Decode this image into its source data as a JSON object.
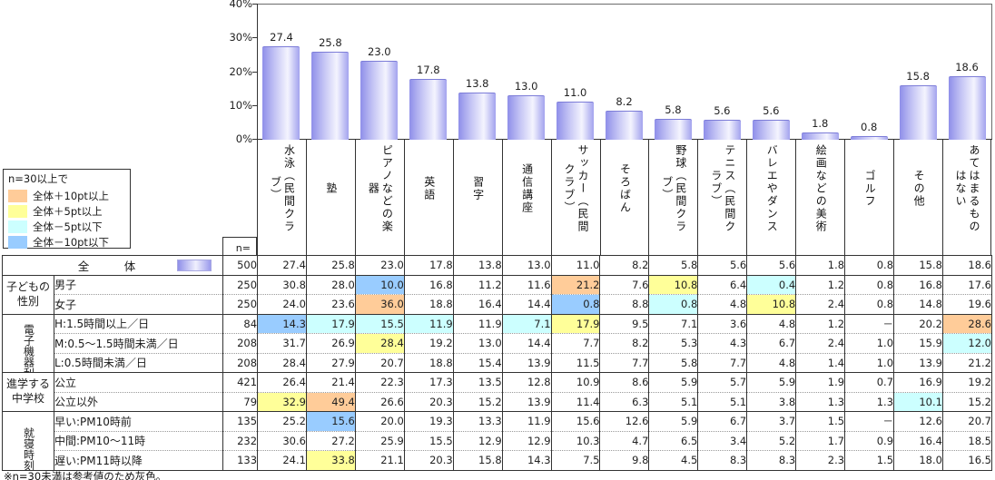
{
  "chart_data": {
    "type": "bar",
    "title": "",
    "xlabel": "",
    "ylabel": "",
    "ylim": [
      0,
      40
    ],
    "grid": false,
    "y_ticks": [
      "0%",
      "10%",
      "20%",
      "30%",
      "40%"
    ],
    "categories": [
      "水泳（民間クラブ）",
      "塾",
      "ピアノなどの楽器",
      "英語",
      "習字",
      "通信講座",
      "サッカー（民間クラブ）",
      "そろばん",
      "野球（民間クラブ）",
      "テニス（民間クラブ）",
      "バレエやダンス",
      "絵画などの美術",
      "ゴルフ",
      "その他",
      "あてはまるものはない"
    ],
    "values": [
      27.4,
      25.8,
      23.0,
      17.8,
      13.8,
      13.0,
      11.0,
      8.2,
      5.8,
      5.6,
      5.6,
      1.8,
      0.8,
      15.8,
      18.6
    ]
  },
  "legend": {
    "title": "n=30以上で",
    "items": [
      {
        "label": "全体＋10pt以上",
        "key": "orange"
      },
      {
        "label": "全体＋5pt以上",
        "key": "yellow"
      },
      {
        "label": "全体－5pt以下",
        "key": "cyan"
      },
      {
        "label": "全体－10pt以下",
        "key": "blue"
      }
    ]
  },
  "highlight_colors": {
    "orange": "#FFCC99",
    "yellow": "#FFFF99",
    "cyan": "#CCFFFF",
    "blue": "#99CCFF"
  },
  "table": {
    "n_header": "n=",
    "total_row": {
      "label": "全　体",
      "n": "500",
      "values": [
        "27.4",
        "25.8",
        "23.0",
        "17.8",
        "13.8",
        "13.0",
        "11.0",
        "8.2",
        "5.8",
        "5.6",
        "5.6",
        "1.8",
        "0.8",
        "15.8",
        "18.6"
      ]
    },
    "groups": [
      {
        "label": "子どもの\n性別",
        "orientation": "h",
        "rows": [
          {
            "label": "男子",
            "n": "250",
            "values": [
              "30.8",
              "28.0",
              "10.0",
              "16.8",
              "11.2",
              "11.6",
              "21.2",
              "7.6",
              "10.8",
              "6.4",
              "0.4",
              "1.2",
              "0.8",
              "16.8",
              "17.6"
            ],
            "highlights": {
              "2": "blue",
              "6": "orange",
              "8": "yellow",
              "10": "cyan"
            }
          },
          {
            "label": "女子",
            "n": "250",
            "values": [
              "24.0",
              "23.6",
              "36.0",
              "18.8",
              "16.4",
              "14.4",
              "0.8",
              "8.8",
              "0.8",
              "4.8",
              "10.8",
              "2.4",
              "0.8",
              "14.8",
              "19.6"
            ],
            "highlights": {
              "2": "orange",
              "6": "blue",
              "8": "cyan",
              "10": "yellow"
            }
          }
        ]
      },
      {
        "label": "電子機器利用時間",
        "orientation": "v3",
        "rows": [
          {
            "label": "H:1.5時間以上／日",
            "n": "84",
            "values": [
              "14.3",
              "17.9",
              "15.5",
              "11.9",
              "11.9",
              "7.1",
              "17.9",
              "9.5",
              "7.1",
              "3.6",
              "4.8",
              "1.2",
              "－",
              "20.2",
              "28.6"
            ],
            "highlights": {
              "0": "blue",
              "1": "cyan",
              "2": "cyan",
              "3": "cyan",
              "5": "cyan",
              "6": "yellow",
              "14": "orange"
            }
          },
          {
            "label": "M:0.5～1.5時間未満／日",
            "n": "208",
            "values": [
              "31.7",
              "26.9",
              "28.4",
              "19.2",
              "13.0",
              "14.4",
              "7.7",
              "8.2",
              "5.3",
              "4.3",
              "6.7",
              "2.4",
              "1.0",
              "15.9",
              "12.0"
            ],
            "highlights": {
              "2": "yellow",
              "14": "cyan"
            }
          },
          {
            "label": "L:0.5時間未満／日",
            "n": "208",
            "values": [
              "28.4",
              "27.9",
              "20.7",
              "18.8",
              "15.4",
              "13.9",
              "11.5",
              "7.7",
              "5.8",
              "7.7",
              "4.8",
              "1.4",
              "1.0",
              "13.9",
              "21.2"
            ],
            "highlights": {}
          }
        ]
      },
      {
        "label": "進学する\n中学校",
        "orientation": "h",
        "rows": [
          {
            "label": "公立",
            "n": "421",
            "values": [
              "26.4",
              "21.4",
              "22.3",
              "17.3",
              "13.5",
              "12.8",
              "10.9",
              "8.6",
              "5.9",
              "5.7",
              "5.9",
              "1.9",
              "0.7",
              "16.9",
              "19.2"
            ],
            "highlights": {}
          },
          {
            "label": "公立以外",
            "n": "79",
            "values": [
              "32.9",
              "49.4",
              "26.6",
              "20.3",
              "15.2",
              "13.9",
              "11.4",
              "6.3",
              "5.1",
              "5.1",
              "3.8",
              "1.3",
              "1.3",
              "10.1",
              "15.2"
            ],
            "highlights": {
              "0": "yellow",
              "1": "orange",
              "13": "cyan"
            }
          }
        ]
      },
      {
        "label": "就寝時刻",
        "orientation": "v2",
        "rows": [
          {
            "label": "早い:PM10時前",
            "n": "135",
            "values": [
              "25.2",
              "15.6",
              "20.0",
              "19.3",
              "13.3",
              "11.9",
              "15.6",
              "12.6",
              "5.9",
              "6.7",
              "3.7",
              "1.5",
              "－",
              "12.6",
              "20.7"
            ],
            "highlights": {
              "1": "blue"
            }
          },
          {
            "label": "中間:PM10～11時",
            "n": "232",
            "values": [
              "30.6",
              "27.2",
              "25.9",
              "15.5",
              "12.9",
              "12.9",
              "10.3",
              "4.7",
              "6.5",
              "3.4",
              "5.2",
              "1.7",
              "0.9",
              "16.4",
              "18.5"
            ],
            "highlights": {}
          },
          {
            "label": "遅い:PM11時以降",
            "n": "133",
            "values": [
              "24.1",
              "33.8",
              "21.1",
              "20.3",
              "15.8",
              "14.3",
              "7.5",
              "9.8",
              "4.5",
              "8.3",
              "8.3",
              "2.3",
              "1.5",
              "18.0",
              "16.5"
            ],
            "highlights": {
              "1": "yellow"
            }
          }
        ]
      }
    ]
  },
  "footnote": "※n=30未満は参考値のため灰色。"
}
